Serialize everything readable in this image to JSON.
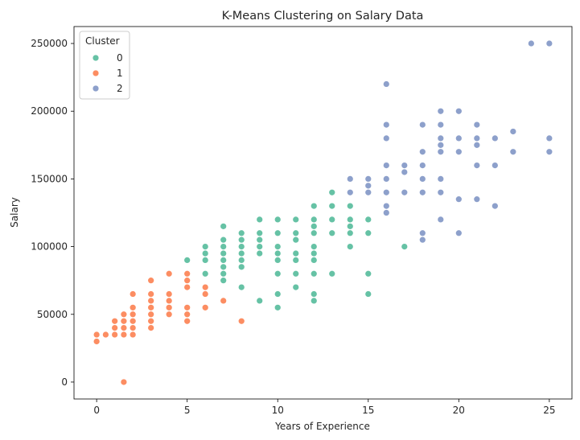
{
  "chart_data": {
    "type": "scatter",
    "title": "K-Means Clustering on Salary Data",
    "xlabel": "Years of Experience",
    "ylabel": "Salary",
    "xlim": [
      -1.25,
      26.25
    ],
    "ylim": [
      -12500,
      262500
    ],
    "xticks": [
      0,
      5,
      10,
      15,
      20,
      25
    ],
    "yticks": [
      0,
      50000,
      100000,
      150000,
      200000,
      250000
    ],
    "grid": false,
    "legend": {
      "title": "Cluster",
      "placement": "top-left",
      "entries": [
        "0",
        "1",
        "2"
      ]
    },
    "series": [
      {
        "name": "0",
        "color": "#66c2a5",
        "points": [
          [
            5,
            90000
          ],
          [
            6,
            100000
          ],
          [
            6,
            95000
          ],
          [
            6,
            90000
          ],
          [
            6,
            80000
          ],
          [
            7,
            115000
          ],
          [
            7,
            105000
          ],
          [
            7,
            100000
          ],
          [
            7,
            95000
          ],
          [
            7,
            90000
          ],
          [
            7,
            85000
          ],
          [
            7,
            80000
          ],
          [
            7,
            75000
          ],
          [
            8,
            110000
          ],
          [
            8,
            105000
          ],
          [
            8,
            100000
          ],
          [
            8,
            95000
          ],
          [
            8,
            90000
          ],
          [
            8,
            85000
          ],
          [
            8,
            70000
          ],
          [
            9,
            120000
          ],
          [
            9,
            110000
          ],
          [
            9,
            105000
          ],
          [
            9,
            100000
          ],
          [
            9,
            95000
          ],
          [
            9,
            60000
          ],
          [
            10,
            120000
          ],
          [
            10,
            110000
          ],
          [
            10,
            100000
          ],
          [
            10,
            95000
          ],
          [
            10,
            90000
          ],
          [
            10,
            80000
          ],
          [
            10,
            65000
          ],
          [
            10,
            55000
          ],
          [
            11,
            120000
          ],
          [
            11,
            110000
          ],
          [
            11,
            105000
          ],
          [
            11,
            95000
          ],
          [
            11,
            90000
          ],
          [
            11,
            80000
          ],
          [
            11,
            70000
          ],
          [
            12,
            130000
          ],
          [
            12,
            120000
          ],
          [
            12,
            115000
          ],
          [
            12,
            110000
          ],
          [
            12,
            100000
          ],
          [
            12,
            95000
          ],
          [
            12,
            90000
          ],
          [
            12,
            80000
          ],
          [
            12,
            65000
          ],
          [
            12,
            60000
          ],
          [
            13,
            140000
          ],
          [
            13,
            130000
          ],
          [
            13,
            120000
          ],
          [
            13,
            110000
          ],
          [
            13,
            80000
          ],
          [
            14,
            130000
          ],
          [
            14,
            120000
          ],
          [
            14,
            115000
          ],
          [
            14,
            110000
          ],
          [
            14,
            100000
          ],
          [
            15,
            120000
          ],
          [
            15,
            110000
          ],
          [
            15,
            80000
          ],
          [
            15,
            65000
          ],
          [
            17,
            100000
          ]
        ]
      },
      {
        "name": "1",
        "color": "#fc8d62",
        "points": [
          [
            0,
            35000
          ],
          [
            0,
            30000
          ],
          [
            0.5,
            35000
          ],
          [
            1,
            45000
          ],
          [
            1,
            40000
          ],
          [
            1,
            35000
          ],
          [
            1.5,
            50000
          ],
          [
            1.5,
            45000
          ],
          [
            1.5,
            40000
          ],
          [
            1.5,
            35000
          ],
          [
            1.5,
            0
          ],
          [
            2,
            65000
          ],
          [
            2,
            55000
          ],
          [
            2,
            50000
          ],
          [
            2,
            45000
          ],
          [
            2,
            40000
          ],
          [
            2,
            35000
          ],
          [
            3,
            75000
          ],
          [
            3,
            65000
          ],
          [
            3,
            60000
          ],
          [
            3,
            55000
          ],
          [
            3,
            50000
          ],
          [
            3,
            45000
          ],
          [
            3,
            40000
          ],
          [
            4,
            80000
          ],
          [
            4,
            65000
          ],
          [
            4,
            60000
          ],
          [
            4,
            55000
          ],
          [
            4,
            50000
          ],
          [
            5,
            80000
          ],
          [
            5,
            75000
          ],
          [
            5,
            70000
          ],
          [
            5,
            55000
          ],
          [
            5,
            50000
          ],
          [
            5,
            45000
          ],
          [
            6,
            70000
          ],
          [
            6,
            65000
          ],
          [
            6,
            55000
          ],
          [
            7,
            60000
          ],
          [
            8,
            45000
          ]
        ]
      },
      {
        "name": "2",
        "color": "#8da0cb",
        "points": [
          [
            14,
            150000
          ],
          [
            14,
            140000
          ],
          [
            15,
            150000
          ],
          [
            15,
            145000
          ],
          [
            15,
            140000
          ],
          [
            16,
            220000
          ],
          [
            16,
            190000
          ],
          [
            16,
            180000
          ],
          [
            16,
            160000
          ],
          [
            16,
            150000
          ],
          [
            16,
            140000
          ],
          [
            16,
            130000
          ],
          [
            16,
            125000
          ],
          [
            17,
            160000
          ],
          [
            17,
            155000
          ],
          [
            17,
            140000
          ],
          [
            18,
            190000
          ],
          [
            18,
            170000
          ],
          [
            18,
            160000
          ],
          [
            18,
            150000
          ],
          [
            18,
            140000
          ],
          [
            18,
            110000
          ],
          [
            18,
            105000
          ],
          [
            19,
            200000
          ],
          [
            19,
            190000
          ],
          [
            19,
            180000
          ],
          [
            19,
            175000
          ],
          [
            19,
            170000
          ],
          [
            19,
            150000
          ],
          [
            19,
            140000
          ],
          [
            19,
            120000
          ],
          [
            20,
            200000
          ],
          [
            20,
            180000
          ],
          [
            20,
            170000
          ],
          [
            20,
            135000
          ],
          [
            20,
            110000
          ],
          [
            21,
            190000
          ],
          [
            21,
            180000
          ],
          [
            21,
            175000
          ],
          [
            21,
            160000
          ],
          [
            21,
            135000
          ],
          [
            22,
            180000
          ],
          [
            22,
            160000
          ],
          [
            22,
            130000
          ],
          [
            23,
            185000
          ],
          [
            23,
            170000
          ],
          [
            24,
            250000
          ],
          [
            25,
            250000
          ],
          [
            25,
            180000
          ],
          [
            25,
            170000
          ]
        ]
      }
    ]
  }
}
